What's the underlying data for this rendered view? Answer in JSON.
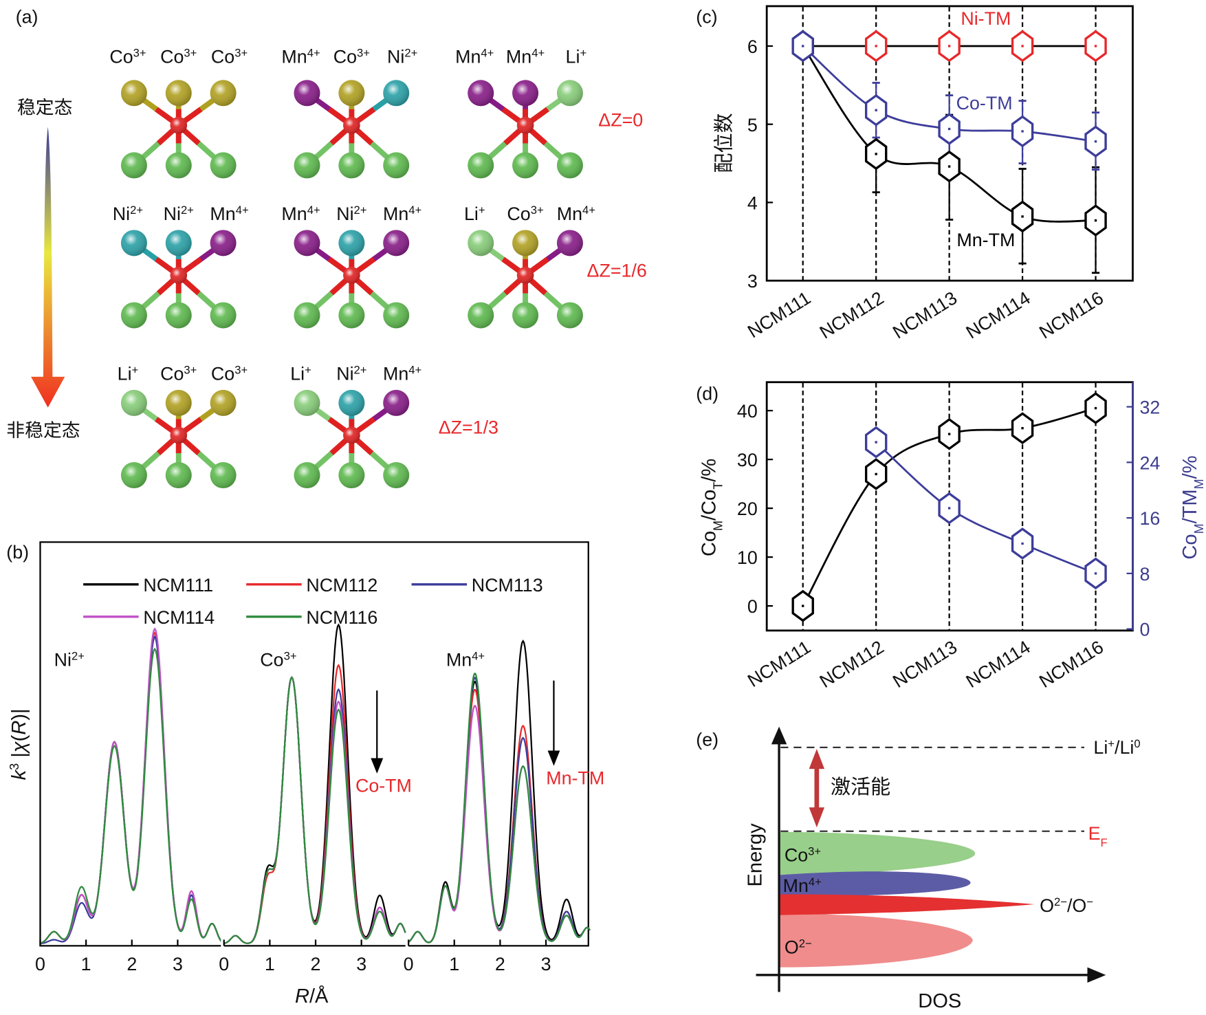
{
  "panel_labels": {
    "a": "(a)",
    "b": "(b)",
    "c": "(c)",
    "d": "(d)",
    "e": "(e)"
  },
  "panel_a": {
    "stable_label": "稳定态",
    "unstable_label": "非稳定态",
    "colors": {
      "Co": "#b0a020",
      "Mn": "#861a86",
      "Ni": "#28a0a6",
      "Li": "#86cc78",
      "O": "#5cb84c",
      "center": "#e02020"
    },
    "rows": [
      {
        "delta_z": "ΔZ=0",
        "clusters": [
          {
            "ions": [
              [
                [
                  "Co",
                  ""
                ],
                [
                  "3+",
                  "sup"
                ]
              ],
              [
                [
                  "Co",
                  ""
                ],
                [
                  "3+",
                  "sup"
                ]
              ],
              [
                [
                  "Co",
                  ""
                ],
                [
                  "3+",
                  "sup"
                ]
              ]
            ],
            "species": [
              "Co",
              "Co",
              "Co"
            ]
          },
          {
            "ions": [
              [
                [
                  "Mn",
                  ""
                ],
                [
                  "4+",
                  "sup"
                ]
              ],
              [
                [
                  "Co",
                  ""
                ],
                [
                  "3+",
                  "sup"
                ]
              ],
              [
                [
                  "Ni",
                  ""
                ],
                [
                  "2+",
                  "sup"
                ]
              ]
            ],
            "species": [
              "Mn",
              "Co",
              "Ni"
            ]
          },
          {
            "ions": [
              [
                [
                  "Mn",
                  ""
                ],
                [
                  "4+",
                  "sup"
                ]
              ],
              [
                [
                  "Mn",
                  ""
                ],
                [
                  "4+",
                  "sup"
                ]
              ],
              [
                [
                  "Li",
                  ""
                ],
                [
                  "+",
                  "sup"
                ]
              ]
            ],
            "species": [
              "Mn",
              "Mn",
              "Li"
            ]
          }
        ]
      },
      {
        "delta_z": "ΔZ=1/6",
        "clusters": [
          {
            "ions": [
              [
                [
                  "Ni",
                  ""
                ],
                [
                  "2+",
                  "sup"
                ]
              ],
              [
                [
                  "Ni",
                  ""
                ],
                [
                  "2+",
                  "sup"
                ]
              ],
              [
                [
                  "Mn",
                  ""
                ],
                [
                  "4+",
                  "sup"
                ]
              ]
            ],
            "species": [
              "Ni",
              "Ni",
              "Mn"
            ]
          },
          {
            "ions": [
              [
                [
                  "Mn",
                  ""
                ],
                [
                  "4+",
                  "sup"
                ]
              ],
              [
                [
                  "Ni",
                  ""
                ],
                [
                  "2+",
                  "sup"
                ]
              ],
              [
                [
                  "Mn",
                  ""
                ],
                [
                  "4+",
                  "sup"
                ]
              ]
            ],
            "species": [
              "Mn",
              "Ni",
              "Mn"
            ]
          },
          {
            "ions": [
              [
                [
                  "Li",
                  ""
                ],
                [
                  "+",
                  "sup"
                ]
              ],
              [
                [
                  "Co",
                  ""
                ],
                [
                  "3+",
                  "sup"
                ]
              ],
              [
                [
                  "Mn",
                  ""
                ],
                [
                  "4+",
                  "sup"
                ]
              ]
            ],
            "species": [
              "Li",
              "Co",
              "Mn"
            ]
          }
        ]
      },
      {
        "delta_z": "ΔZ=1/3",
        "clusters": [
          {
            "ions": [
              [
                [
                  "Li",
                  ""
                ],
                [
                  "+",
                  "sup"
                ]
              ],
              [
                [
                  "Co",
                  ""
                ],
                [
                  "3+",
                  "sup"
                ]
              ],
              [
                [
                  "Co",
                  ""
                ],
                [
                  "3+",
                  "sup"
                ]
              ]
            ],
            "species": [
              "Li",
              "Co",
              "Co"
            ]
          },
          {
            "ions": [
              [
                [
                  "Li",
                  ""
                ],
                [
                  "+",
                  "sup"
                ]
              ],
              [
                [
                  "Ni",
                  ""
                ],
                [
                  "2+",
                  "sup"
                ]
              ],
              [
                [
                  "Mn",
                  ""
                ],
                [
                  "4+",
                  "sup"
                ]
              ]
            ],
            "species": [
              "Li",
              "Ni",
              "Mn"
            ]
          }
        ]
      }
    ]
  },
  "chart_data": [
    {
      "id": "b",
      "type": "line",
      "xlabel": [
        [
          "R",
          "i"
        ],
        [
          "/Å",
          ""
        ]
      ],
      "ylabel": [
        [
          "k",
          "i"
        ],
        [
          "3",
          "sup"
        ],
        [
          " |",
          ""
        ],
        [
          "χ",
          "i"
        ],
        [
          "(",
          ""
        ],
        [
          "R",
          "i"
        ],
        [
          ")|",
          ""
        ]
      ],
      "x_ticks": [
        "0",
        "1",
        "2",
        "3"
      ],
      "xlim": [
        0,
        4
      ],
      "ylim": [
        0,
        1
      ],
      "legend": [
        "NCM111",
        "NCM112",
        "NCM113",
        "NCM114",
        "NCM116"
      ],
      "legend_position": "top",
      "series_colors": {
        "NCM111": "#000000",
        "NCM112": "#e8282b",
        "NCM113": "#3b3b9c",
        "NCM114": "#c050c8",
        "NCM116": "#2e8b3e"
      },
      "edges": [
        {
          "label": [
            [
              "Ni",
              ""
            ],
            [
              "2+",
              "sup"
            ]
          ],
          "peaks_R": [
            0.3,
            0.9,
            1.62,
            2.5,
            3.3,
            3.75
          ],
          "widths": [
            0.12,
            0.15,
            0.21,
            0.21,
            0.11,
            0.1
          ],
          "amps": {
            "NCM111": [
              0.03,
              0.12,
              0.5,
              0.76,
              0.12,
              0.05
            ],
            "NCM112": [
              0.03,
              0.12,
              0.5,
              0.77,
              0.13,
              0.05
            ],
            "NCM113": [
              0.01,
              0.1,
              0.5,
              0.76,
              0.12,
              0.05
            ],
            "NCM114": [
              0.03,
              0.12,
              0.5,
              0.78,
              0.13,
              0.05
            ],
            "NCM116": [
              0.03,
              0.14,
              0.49,
              0.73,
              0.11,
              0.05
            ]
          }
        },
        {
          "label": [
            [
              "Co",
              ""
            ],
            [
              "3+",
              "sup"
            ]
          ],
          "arrow_label": "Co-TM",
          "peaks_R": [
            0.25,
            0.95,
            1.48,
            2.5,
            3.4,
            3.85
          ],
          "widths": [
            0.1,
            0.13,
            0.2,
            0.2,
            0.13,
            0.1
          ],
          "amps": {
            "NCM111": [
              0.02,
              0.17,
              0.66,
              0.79,
              0.12,
              0.05
            ],
            "NCM112": [
              0.02,
              0.15,
              0.66,
              0.69,
              0.09,
              0.05
            ],
            "NCM113": [
              0.02,
              0.16,
              0.66,
              0.63,
              0.09,
              0.05
            ],
            "NCM114": [
              0.02,
              0.16,
              0.66,
              0.6,
              0.09,
              0.05
            ],
            "NCM116": [
              0.02,
              0.16,
              0.66,
              0.58,
              0.08,
              0.05
            ]
          }
        },
        {
          "label": [
            [
              "Mn",
              ""
            ],
            [
              "4+",
              "sup"
            ]
          ],
          "arrow_label": "Mn-TM",
          "peaks_R": [
            0.2,
            0.8,
            1.45,
            2.5,
            3.45,
            3.9
          ],
          "widths": [
            0.1,
            0.12,
            0.2,
            0.2,
            0.13,
            0.1
          ],
          "amps": {
            "NCM111": [
              0.03,
              0.15,
              0.65,
              0.75,
              0.11,
              0.04
            ],
            "NCM112": [
              0.03,
              0.14,
              0.63,
              0.54,
              0.08,
              0.04
            ],
            "NCM113": [
              0.03,
              0.14,
              0.66,
              0.51,
              0.08,
              0.04
            ],
            "NCM114": [
              0.03,
              0.14,
              0.59,
              0.44,
              0.07,
              0.04
            ],
            "NCM116": [
              0.03,
              0.14,
              0.67,
              0.44,
              0.07,
              0.04
            ]
          }
        }
      ]
    },
    {
      "id": "c",
      "type": "line",
      "ylabel": "配位数",
      "categories": [
        "NCM111",
        "NCM112",
        "NCM113",
        "NCM114",
        "NCM116"
      ],
      "ylim": [
        3,
        6.5
      ],
      "y_ticks": [
        "3",
        "4",
        "5",
        "6"
      ],
      "series": [
        {
          "name": "Ni-TM",
          "color": "#e8282b",
          "values": [
            6,
            6,
            6,
            6,
            6
          ]
        },
        {
          "name": "Co-TM",
          "color": "#3d3d9a",
          "values": [
            6,
            5.18,
            4.94,
            4.91,
            4.78
          ],
          "errors": [
            null,
            [
              4.83,
              5.53
            ],
            [
              4.52,
              5.37
            ],
            [
              4.5,
              5.3
            ],
            [
              4.42,
              5.15
            ]
          ]
        },
        {
          "name": "Mn-TM",
          "color": "#000000",
          "values": [
            6,
            4.62,
            4.46,
            3.82,
            3.77
          ],
          "errors": [
            null,
            [
              4.13,
              4.62
            ],
            [
              3.78,
              5.12
            ],
            [
              3.22,
              4.43
            ],
            [
              3.1,
              4.45
            ]
          ]
        }
      ]
    },
    {
      "id": "d",
      "type": "line",
      "ylabel_left": [
        [
          "Co",
          ""
        ],
        [
          "M",
          "sub"
        ],
        [
          "/Co",
          ""
        ],
        [
          "T",
          "sub"
        ],
        [
          "/%",
          ""
        ]
      ],
      "ylabel_right": [
        [
          "Co",
          ""
        ],
        [
          "M",
          "sub"
        ],
        [
          "/TM",
          ""
        ],
        [
          "M",
          "sub"
        ],
        [
          "/%",
          ""
        ]
      ],
      "categories": [
        "NCM111",
        "NCM112",
        "NCM113",
        "NCM114",
        "NCM116"
      ],
      "ylim_left": [
        -5,
        45.8
      ],
      "ylim_right": [
        0,
        36
      ],
      "y_ticks_left": [
        "0",
        "10",
        "20",
        "30",
        "40"
      ],
      "y_ticks_right": [
        "0",
        "8",
        "16",
        "24",
        "32"
      ],
      "right_axis_color": "#3d3d8f",
      "series": [
        {
          "name": "CoM/CoT",
          "axis": "left",
          "color": "#000000",
          "values": [
            0,
            27,
            35.2,
            36.4,
            40.5
          ]
        },
        {
          "name": "CoM/TMM",
          "axis": "right",
          "color": "#3d3d9a",
          "values": [
            null,
            26.9,
            17.4,
            12.3,
            8.0
          ]
        }
      ]
    }
  ],
  "panel_e": {
    "y_label": "Energy",
    "x_label": "DOS",
    "li_level": [
      [
        "Li",
        ""
      ],
      [
        "+",
        "sup"
      ],
      [
        "/Li",
        ""
      ],
      [
        "0",
        "sup"
      ]
    ],
    "ef_level": [
      [
        "E",
        ""
      ],
      [
        "F",
        "sub"
      ]
    ],
    "activation_label": "激活能",
    "bands": [
      {
        "label": [
          [
            "Co",
            ""
          ],
          [
            "3+",
            "sup"
          ]
        ],
        "color": "#98cf8a"
      },
      {
        "label": [
          [
            "Mn",
            ""
          ],
          [
            "4+",
            "sup"
          ]
        ],
        "color": "#5c5ca6"
      },
      {
        "label": [
          [
            "O",
            ""
          ],
          [
            "2−",
            "sup"
          ],
          [
            "/O",
            ""
          ],
          [
            "−",
            "sup"
          ]
        ],
        "color": "#e43030"
      },
      {
        "label": [
          [
            "O",
            ""
          ],
          [
            "2−",
            "sup"
          ]
        ],
        "color": "#f08c8c"
      }
    ]
  }
}
